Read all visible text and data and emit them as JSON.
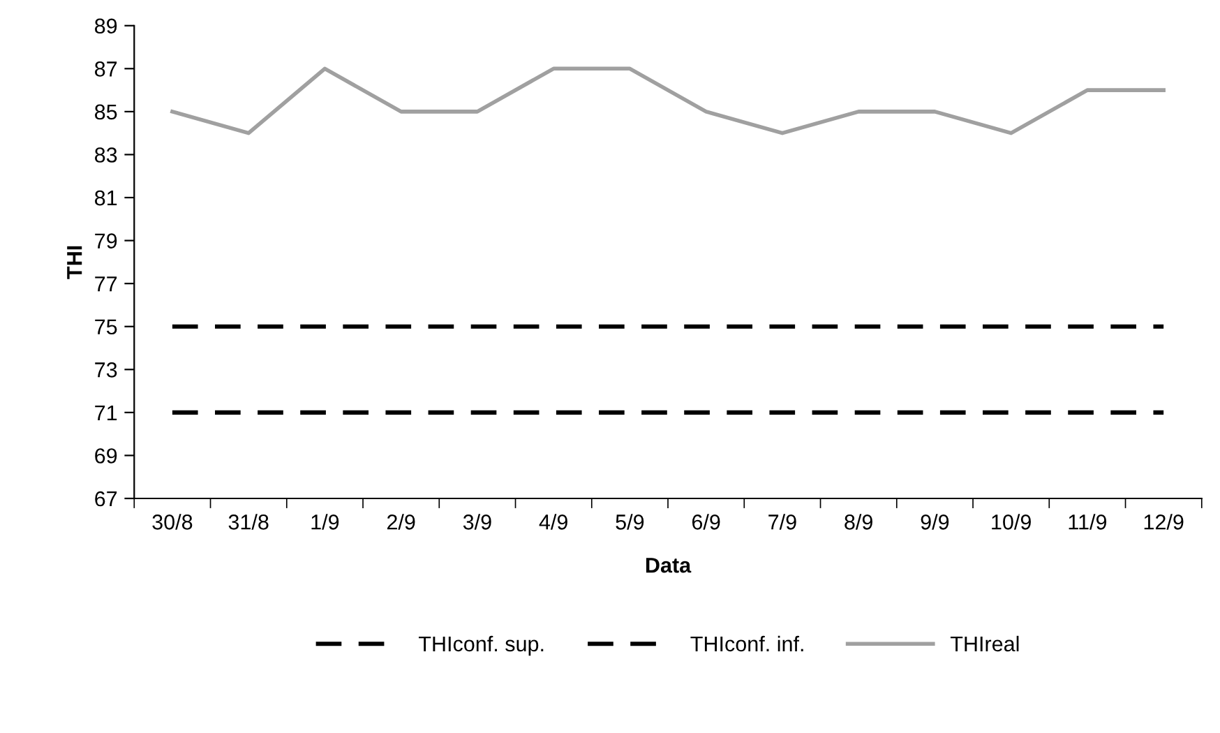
{
  "chart_data": {
    "type": "line",
    "xlabel": "Data",
    "ylabel": "THI",
    "categories": [
      "30/8",
      "31/8",
      "1/9",
      "2/9",
      "3/9",
      "4/9",
      "5/9",
      "6/9",
      "7/9",
      "8/9",
      "9/9",
      "10/9",
      "11/9",
      "12/9"
    ],
    "series": [
      {
        "name": "THIconf. sup.",
        "color": "#000000",
        "line_style": "dashed",
        "values": [
          75,
          75,
          75,
          75,
          75,
          75,
          75,
          75,
          75,
          75,
          75,
          75,
          75,
          75
        ]
      },
      {
        "name": "THIconf. inf.",
        "color": "#000000",
        "line_style": "dashed",
        "values": [
          71,
          71,
          71,
          71,
          71,
          71,
          71,
          71,
          71,
          71,
          71,
          71,
          71,
          71
        ]
      },
      {
        "name": "THIreal",
        "color": "#a0a0a0",
        "line_style": "solid",
        "values": [
          85,
          84,
          87,
          85,
          85,
          87,
          87,
          85,
          84,
          85,
          85,
          84,
          86,
          86
        ]
      }
    ],
    "ylim": [
      67,
      89
    ],
    "yticks": [
      67,
      69,
      71,
      73,
      75,
      77,
      79,
      81,
      83,
      85,
      87,
      89
    ],
    "grid": false,
    "legend": "bottom",
    "marker": "none"
  }
}
